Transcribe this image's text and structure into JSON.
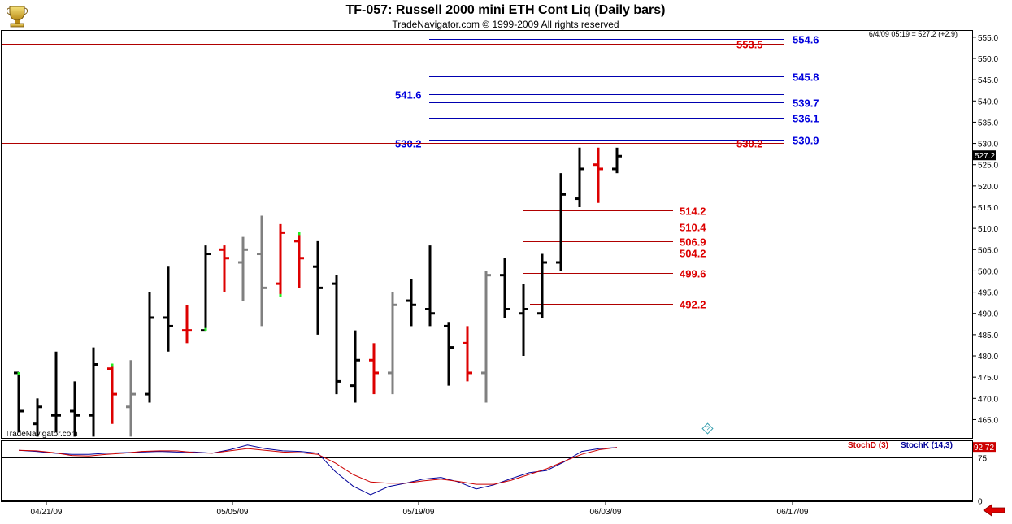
{
  "header": {
    "title": "TF-057:  Russell 2000 mini ETH Cont Liq  (Daily bars)",
    "copyright": "TradeNavigator.com © 1999-2009 All rights reserved",
    "quote": "6/4/09 05:19 = 527.2 (+2.9)",
    "watermark": "TradeNavigator.com",
    "help_glyph": "?"
  },
  "icons": {
    "logo": "trophy-logo-icon",
    "scroll": "scroll-left-arrow-icon"
  },
  "colors": {
    "up": "#000000",
    "down": "#dd0000",
    "neutral": "#808080",
    "blue_line": "#0000b0",
    "red_line": "#b00000",
    "stochD": "#cc0000",
    "stochK": "#000099"
  },
  "chart_data": {
    "type": "ohlc",
    "price_axis": {
      "ylim": [
        460.5,
        556.5
      ],
      "ticks": [
        465,
        470,
        475,
        480,
        485,
        490,
        495,
        500,
        505,
        510,
        515,
        520,
        525,
        530,
        535,
        540,
        545,
        550,
        555
      ],
      "last_price_label": "527.2"
    },
    "x_axis": {
      "tick_labels": [
        "04/21/09",
        "05/05/09",
        "05/19/09",
        "06/03/09",
        "06/17/09"
      ]
    },
    "bars": [
      {
        "o": 476,
        "h": 476,
        "l": 462,
        "c": 467,
        "color": "up",
        "hi_mark": true
      },
      {
        "o": 464,
        "h": 470,
        "l": 461,
        "c": 468,
        "color": "up"
      },
      {
        "o": 466,
        "h": 481,
        "l": 462,
        "c": 466,
        "color": "up"
      },
      {
        "o": 467,
        "h": 474,
        "l": 461,
        "c": 466,
        "color": "up"
      },
      {
        "o": 466,
        "h": 482,
        "l": 461,
        "c": 478,
        "color": "up"
      },
      {
        "o": 477,
        "h": 478,
        "l": 464,
        "c": 471,
        "color": "down",
        "hi_mark": true
      },
      {
        "o": 468,
        "h": 479,
        "l": 461,
        "c": 471,
        "color": "neutral"
      },
      {
        "o": 471,
        "h": 495,
        "l": 469,
        "c": 489,
        "color": "up"
      },
      {
        "o": 489,
        "h": 501,
        "l": 481,
        "c": 487,
        "color": "up"
      },
      {
        "o": 486,
        "h": 492,
        "l": 483,
        "c": 486,
        "color": "down"
      },
      {
        "o": 486,
        "h": 506,
        "l": 486,
        "c": 504,
        "color": "up",
        "lo_mark": true
      },
      {
        "o": 505,
        "h": 506,
        "l": 495,
        "c": 503,
        "color": "down"
      },
      {
        "o": 502,
        "h": 508,
        "l": 493,
        "c": 505,
        "color": "neutral"
      },
      {
        "o": 504,
        "h": 513,
        "l": 487,
        "c": 496,
        "color": "neutral"
      },
      {
        "o": 497,
        "h": 511,
        "l": 494,
        "c": 509,
        "color": "down",
        "lo_mark": true
      },
      {
        "o": 507,
        "h": 509,
        "l": 496,
        "c": 503,
        "color": "down",
        "hi_mark": true
      },
      {
        "o": 501,
        "h": 507,
        "l": 485,
        "c": 496,
        "color": "up"
      },
      {
        "o": 497,
        "h": 499,
        "l": 471,
        "c": 474,
        "color": "up"
      },
      {
        "o": 473,
        "h": 486,
        "l": 469,
        "c": 479,
        "color": "up"
      },
      {
        "o": 479,
        "h": 483,
        "l": 471,
        "c": 476,
        "color": "down"
      },
      {
        "o": 476,
        "h": 495,
        "l": 471,
        "c": 492,
        "color": "neutral"
      },
      {
        "o": 493,
        "h": 498,
        "l": 487,
        "c": 492,
        "color": "up"
      },
      {
        "o": 491,
        "h": 506,
        "l": 487,
        "c": 490,
        "color": "up"
      },
      {
        "o": 487,
        "h": 488,
        "l": 473,
        "c": 482,
        "color": "up"
      },
      {
        "o": 483,
        "h": 487,
        "l": 474,
        "c": 476,
        "color": "down"
      },
      {
        "o": 476,
        "h": 500,
        "l": 469,
        "c": 499,
        "color": "neutral"
      },
      {
        "o": 499,
        "h": 503,
        "l": 489,
        "c": 491,
        "color": "up"
      },
      {
        "o": 490,
        "h": 497,
        "l": 480,
        "c": 491,
        "color": "up"
      },
      {
        "o": 490,
        "h": 504,
        "l": 489,
        "c": 502,
        "color": "up"
      },
      {
        "o": 502,
        "h": 523,
        "l": 500,
        "c": 518,
        "color": "up"
      },
      {
        "o": 517,
        "h": 529,
        "l": 515,
        "c": 524,
        "color": "up"
      },
      {
        "o": 525,
        "h": 529,
        "l": 516,
        "c": 524,
        "color": "down"
      },
      {
        "o": 524,
        "h": 529,
        "l": 523,
        "c": 527,
        "color": "up"
      }
    ],
    "levels": [
      {
        "value": 554.6,
        "label": "554.6",
        "color": "blue",
        "side": "right"
      },
      {
        "value": 553.5,
        "label": "553.5",
        "color": "red",
        "side": "right"
      },
      {
        "value": 545.8,
        "label": "545.8",
        "color": "blue",
        "side": "right"
      },
      {
        "value": 541.6,
        "label": "541.6",
        "color": "blue",
        "side": "left"
      },
      {
        "value": 539.7,
        "label": "539.7",
        "color": "blue",
        "side": "right"
      },
      {
        "value": 536.1,
        "label": "536.1",
        "color": "blue",
        "side": "right"
      },
      {
        "value": 530.9,
        "label": "530.9",
        "color": "blue",
        "side": "right"
      },
      {
        "value": 530.2,
        "label": "530.2",
        "color": "blue",
        "side": "left"
      },
      {
        "value": 530.2,
        "label": "530.2",
        "color": "red",
        "side": "right"
      },
      {
        "value": 514.2,
        "label": "514.2",
        "color": "red",
        "side": "right"
      },
      {
        "value": 510.4,
        "label": "510.4",
        "color": "red",
        "side": "right"
      },
      {
        "value": 506.9,
        "label": "506.9",
        "color": "red",
        "side": "right"
      },
      {
        "value": 504.2,
        "label": "504.2",
        "color": "red",
        "side": "right"
      },
      {
        "value": 499.6,
        "label": "499.6",
        "color": "red",
        "side": "right"
      },
      {
        "value": 492.2,
        "label": "492.2",
        "color": "red",
        "side": "right"
      }
    ],
    "stochastic": {
      "ylim": [
        0,
        100
      ],
      "ticks": [
        0,
        75
      ],
      "last_label": "92.72",
      "stochD_label": "StochD (3)",
      "stochK_label": "StochK (14,3)",
      "stochD": [
        87,
        86,
        83,
        78,
        77,
        80,
        82,
        85,
        86,
        86,
        83,
        82,
        86,
        90,
        87,
        84,
        83,
        80,
        65,
        45,
        32,
        30,
        30,
        34,
        37,
        33,
        28,
        28,
        35,
        45,
        55,
        68,
        80,
        88,
        92
      ],
      "stochK": [
        87,
        85,
        82,
        80,
        80,
        82,
        83,
        84,
        85,
        84,
        84,
        82,
        88,
        96,
        90,
        86,
        85,
        82,
        50,
        25,
        10,
        24,
        30,
        37,
        40,
        32,
        20,
        27,
        38,
        48,
        52,
        67,
        85,
        90,
        92
      ]
    }
  }
}
